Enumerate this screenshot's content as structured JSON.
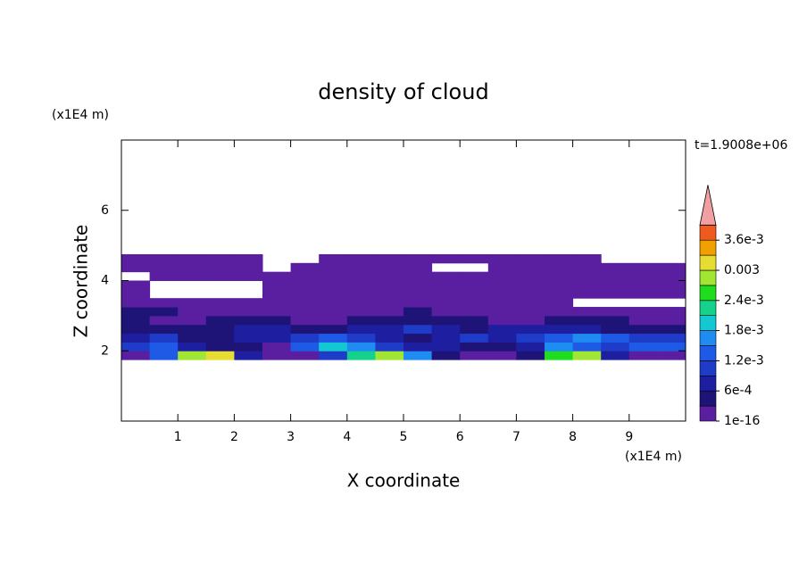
{
  "chart_data": {
    "type": "contour",
    "title": "density of cloud",
    "x_label": "X coordinate",
    "y_label": "Z coordinate",
    "x_unit": "(x1E4 m)",
    "y_unit": "(x1E4 m)",
    "time_label": "t=1.9008e+06",
    "xlim": [
      0,
      10
    ],
    "ylim": [
      0,
      8
    ],
    "xticks": [
      1,
      2,
      3,
      4,
      5,
      6,
      7,
      8,
      9
    ],
    "yticks": [
      2,
      4,
      6
    ],
    "x": [
      0.25,
      0.75,
      1.25,
      1.75,
      2.25,
      2.75,
      3.25,
      3.75,
      4.25,
      4.75,
      5.25,
      5.75,
      6.25,
      6.75,
      7.25,
      7.75,
      8.25,
      8.75,
      9.25,
      9.75
    ],
    "y": [
      1.875,
      2.125,
      2.375,
      2.625,
      2.875,
      3.125,
      3.375,
      3.625,
      3.875,
      4.125,
      4.375,
      4.625
    ],
    "z": [
      [
        0.0002,
        0.0012,
        0.0028,
        0.003,
        0.0008,
        0.0001,
        0.0002,
        0.0009,
        0.0021,
        0.0027,
        0.0017,
        0.0004,
        0.0001,
        0.0001,
        0.0003,
        0.0025,
        0.0029,
        0.0006,
        0.0002,
        0.0002
      ],
      [
        0.0009,
        0.0014,
        0.0007,
        0.0005,
        0.0003,
        0.0002,
        0.0012,
        0.0019,
        0.0015,
        0.0011,
        0.0008,
        0.0006,
        0.0003,
        0.0004,
        0.0008,
        0.0016,
        0.0013,
        0.0009,
        0.0012,
        0.0014
      ],
      [
        0.0007,
        0.0011,
        0.0005,
        0.0004,
        0.0006,
        0.0008,
        0.001,
        0.0013,
        0.0009,
        0.0006,
        0.0005,
        0.0007,
        0.0009,
        0.0008,
        0.0011,
        0.0014,
        0.0017,
        0.0013,
        0.001,
        0.0009
      ],
      [
        0.0005,
        0.0004,
        0.0003,
        0.0005,
        0.0007,
        0.0006,
        0.0005,
        0.0004,
        0.0006,
        0.0008,
        0.0009,
        0.0007,
        0.0005,
        0.0006,
        0.0008,
        0.0007,
        0.0006,
        0.0005,
        0.0004,
        0.0004
      ],
      [
        0.0003,
        0.0002,
        0.0002,
        0.0003,
        0.0004,
        0.0003,
        0.0002,
        0.0002,
        0.0003,
        0.0004,
        0.0005,
        0.0004,
        0.0003,
        0.0002,
        0.0002,
        0.0003,
        0.0004,
        0.0003,
        0.0002,
        0.0002
      ],
      [
        0.0004,
        0.0003,
        0.0002,
        0.0001,
        0.0001,
        0.0002,
        0.0002,
        0.0001,
        0.0001,
        0.0002,
        0.0003,
        0.0002,
        0.0001,
        0.0001,
        0.0002,
        0.0002,
        0.0001,
        0.0001,
        0.0001,
        0.0002
      ],
      [
        0.0002,
        0.0001,
        0.0001,
        0.0001,
        0.0001,
        0.0001,
        0.0001,
        0.0001,
        0.0001,
        0.0001,
        0.0001,
        0.0001,
        0.0001,
        0.0001,
        0.0001,
        0.0001,
        0,
        0,
        0,
        0
      ],
      [
        0.0001,
        0,
        0,
        0,
        0,
        0.0001,
        0.0001,
        0.0001,
        0.0001,
        0.0001,
        0.0001,
        0.0001,
        0.0001,
        0.0001,
        0.0001,
        0.0001,
        0.0001,
        0.0001,
        0.0001,
        0.0001
      ],
      [
        0.0001,
        0,
        0,
        0,
        0,
        0.0001,
        0.0001,
        0.0001,
        0.0001,
        0.0001,
        0.0001,
        0.0001,
        0.0001,
        0.0001,
        0.0001,
        0.0001,
        0.0001,
        0.0001,
        0.0001,
        0.0001
      ],
      [
        0,
        0.0001,
        0.0001,
        0.0001,
        0.0001,
        0.0001,
        0.0001,
        0.0001,
        0.0001,
        0.0001,
        0.0001,
        0.0001,
        0.0001,
        0.0001,
        0.0001,
        0.0001,
        0.0001,
        0.0001,
        0.0001,
        0.0001
      ],
      [
        0.0001,
        0.0001,
        0.0001,
        0.0001,
        0.0001,
        0,
        0.0001,
        0.0001,
        0.0001,
        0.0001,
        0.0001,
        0,
        0,
        0.0001,
        0.0001,
        0.0001,
        0.0001,
        0.0001,
        0.0001,
        0.0001
      ],
      [
        0.0001,
        0.0001,
        0.0001,
        0.0001,
        0.0001,
        0,
        0,
        0.0001,
        0.0001,
        0.0001,
        0.0001,
        0.0001,
        0.0001,
        0.0001,
        0.0001,
        0.0001,
        0.0001,
        0,
        0,
        0
      ]
    ],
    "colorbar": {
      "levels": [
        1e-16,
        0.0003,
        0.0006,
        0.0009,
        0.0012,
        0.0015,
        0.0018,
        0.0021,
        0.0024,
        0.0027,
        0.003,
        0.0033,
        0.0036,
        0.0039
      ],
      "colors": [
        "#5a1ea0",
        "#1e1478",
        "#1e1ea0",
        "#1e3cc8",
        "#1e5ae6",
        "#1e8cf0",
        "#14c8d2",
        "#14d28c",
        "#1edc1e",
        "#a0e632",
        "#e6dc32",
        "#f0a000",
        "#f05a1e"
      ],
      "extend_color": "#f0a0a0",
      "ticks": [
        {
          "value": 1e-16,
          "label": "1e-16"
        },
        {
          "value": 0.0006,
          "label": "6e-4"
        },
        {
          "value": 0.0012,
          "label": "1.2e-3"
        },
        {
          "value": 0.0018,
          "label": "1.8e-3"
        },
        {
          "value": 0.0024,
          "label": "2.4e-3"
        },
        {
          "value": 0.003,
          "label": "0.003"
        },
        {
          "value": 0.0036,
          "label": "3.6e-3"
        }
      ]
    }
  }
}
